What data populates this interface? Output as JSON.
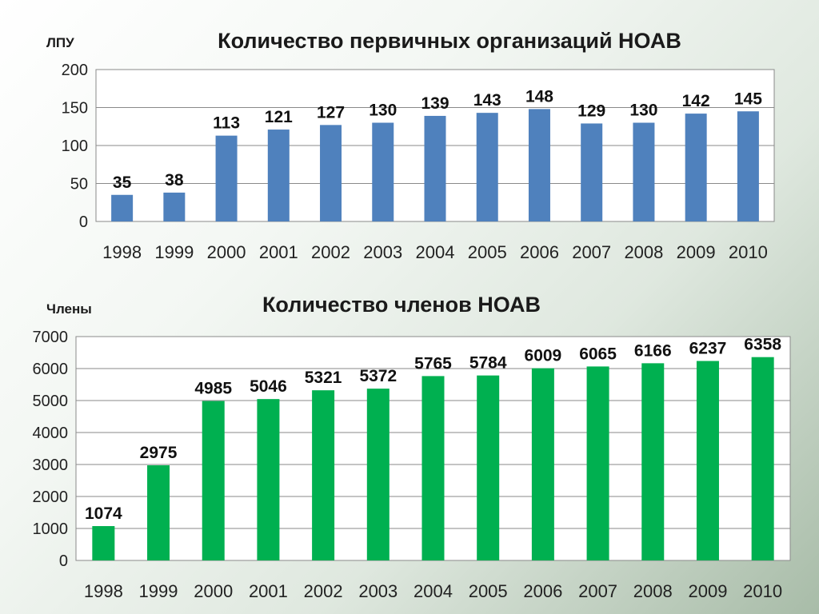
{
  "chart_data": [
    {
      "type": "bar",
      "title": "Количество первичных организаций НОАВ",
      "ylabel": "ЛПУ",
      "xlabel": "",
      "categories": [
        "1998",
        "1999",
        "2000",
        "2001",
        "2002",
        "2003",
        "2004",
        "2005",
        "2006",
        "2007",
        "2008",
        "2009",
        "2010"
      ],
      "values": [
        35,
        38,
        113,
        121,
        127,
        130,
        139,
        143,
        148,
        129,
        130,
        142,
        145
      ],
      "ylim": [
        0,
        200
      ],
      "yticks": [
        "0",
        "50",
        "100",
        "150",
        "200"
      ],
      "grid": true,
      "bar_color": "#4f81bd"
    },
    {
      "type": "bar",
      "title": "Количество членов НОАВ",
      "ylabel": "Члены",
      "xlabel": "",
      "categories": [
        "1998",
        "1999",
        "2000",
        "2001",
        "2002",
        "2003",
        "2004",
        "2005",
        "2006",
        "2007",
        "2008",
        "2009",
        "2010"
      ],
      "values": [
        1074,
        2975,
        4985,
        5046,
        5321,
        5372,
        5765,
        5784,
        6009,
        6065,
        6166,
        6237,
        6358
      ],
      "ylim": [
        0,
        7000
      ],
      "yticks": [
        "0",
        "1000",
        "2000",
        "3000",
        "4000",
        "5000",
        "6000",
        "7000"
      ],
      "grid": true,
      "bar_color": "#00b050"
    }
  ]
}
